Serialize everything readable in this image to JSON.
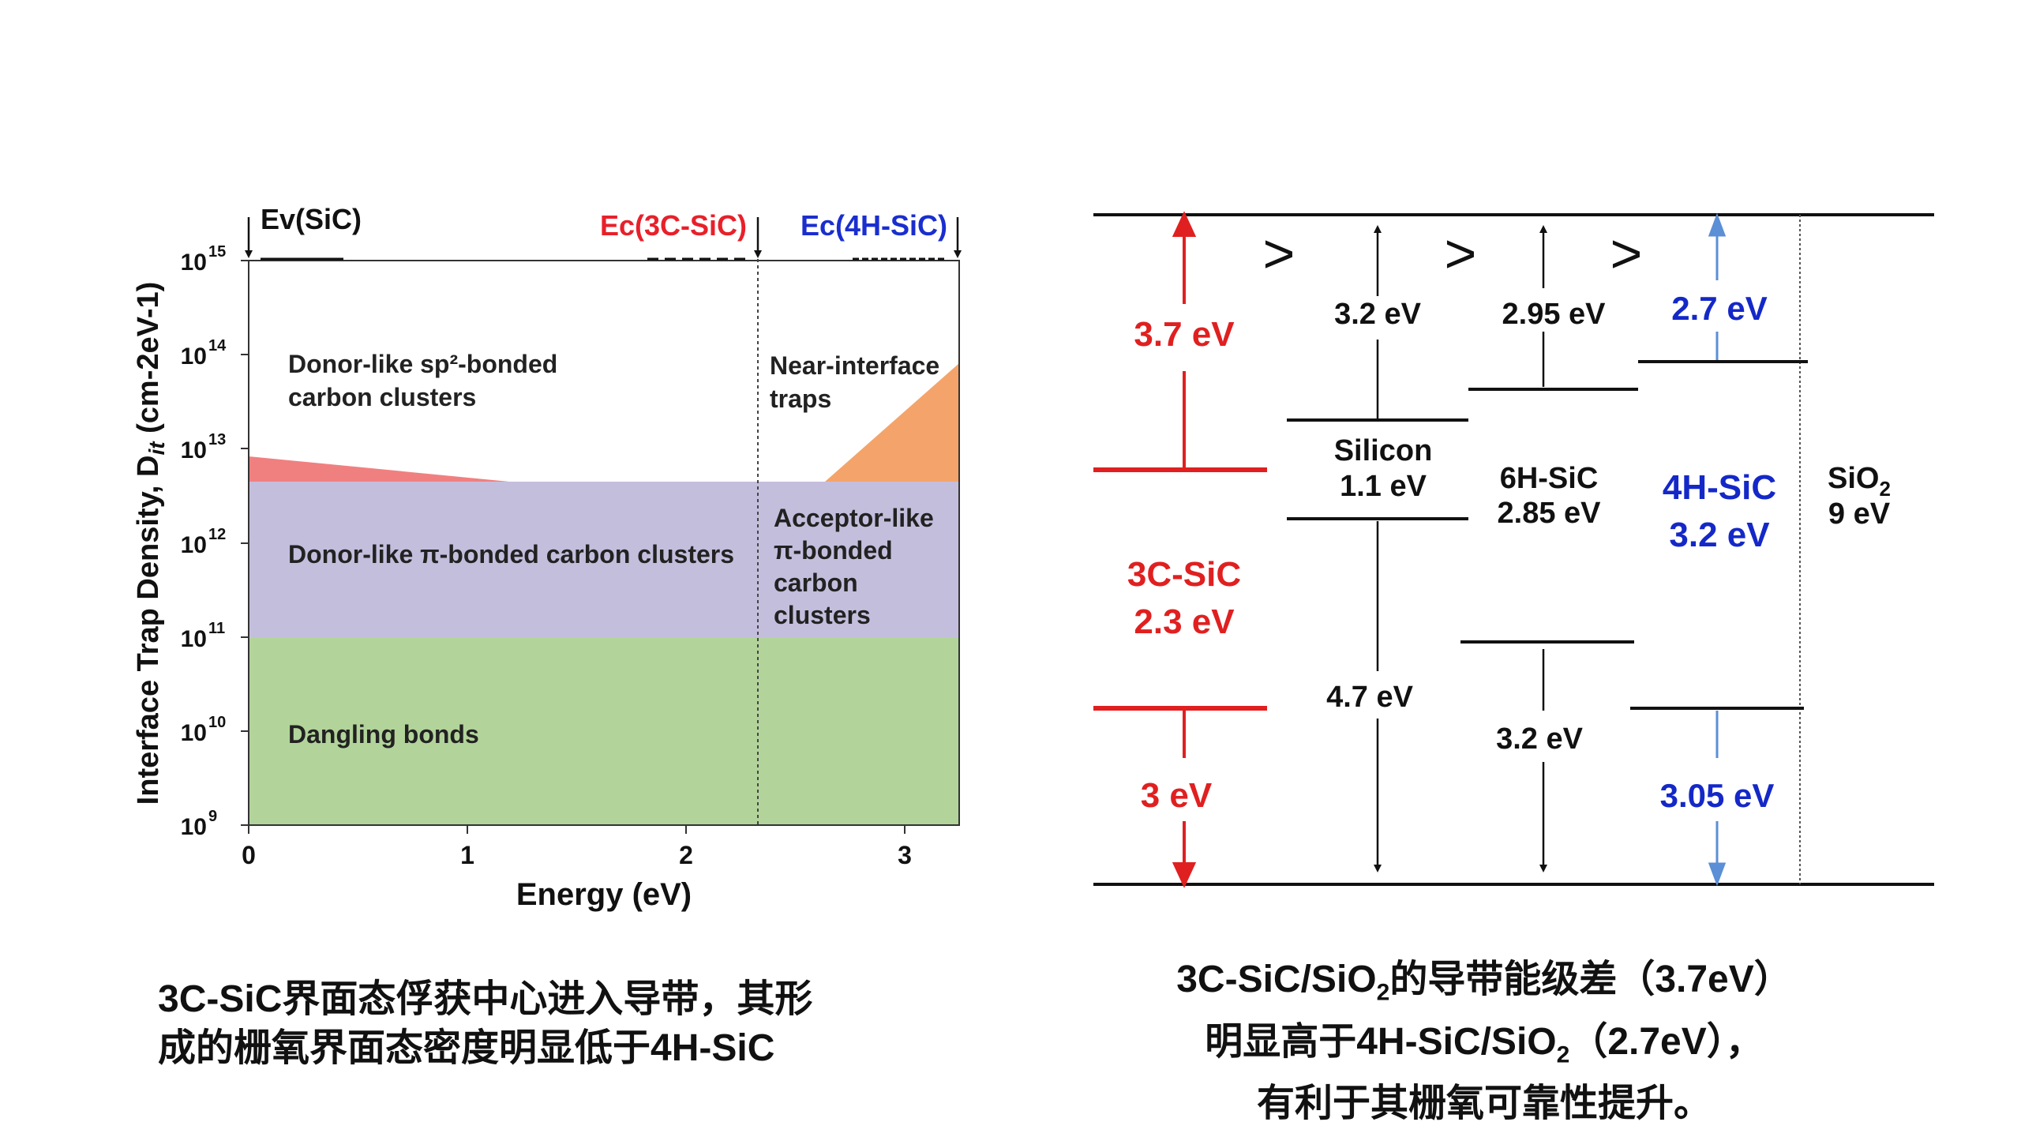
{
  "left_chart": {
    "top_labels": {
      "ev": "Ev(SiC)",
      "ec_3c": "Ec(3C-SiC)",
      "ec_4h": "Ec(4H-SiC)"
    },
    "ylabel": "Interface Trap Density, D",
    "ylabel_sub": "it",
    "ylabel_unit": "(cm-2eV-1)",
    "xlabel": "Energy (eV)",
    "y_ticks": [
      "10",
      "10",
      "10",
      "10",
      "10",
      "10",
      "10"
    ],
    "y_tick_exps": [
      "15",
      "14",
      "13",
      "12",
      "11",
      "10",
      "9"
    ],
    "x_ticks": [
      "0",
      "1",
      "2",
      "3"
    ],
    "regions": {
      "donor_sp2_line1": "Donor-like sp²-bonded",
      "donor_sp2_line2": "carbon clusters",
      "near_interface_1": "Near-interface",
      "near_interface_2": "traps",
      "donor_pi": "Donor-like π-bonded carbon clusters",
      "acceptor_1": "Acceptor-like",
      "acceptor_2": "π-bonded",
      "acceptor_3": "carbon",
      "acceptor_4": "clusters",
      "dangling": "Dangling bonds"
    },
    "colors": {
      "ev": "#111111",
      "ec_3c": "#e8202a",
      "ec_4h": "#1a2ecf",
      "sp2": "#f08080",
      "near": "#f4a46a",
      "pi": "#c4bedd",
      "dangling": "#b2d49a"
    }
  },
  "chart_data": {
    "type": "area",
    "title": "",
    "xlabel": "Energy (eV)",
    "ylabel": "Interface Trap Density, Dit (cm-2eV-1)",
    "xlim": [
      0,
      3.25
    ],
    "ylim": [
      1000000000.0,
      1000000000000000.0
    ],
    "yscale": "log",
    "series": [
      {
        "name": "Dangling bonds",
        "x": [
          0,
          3.25
        ],
        "y": [
          100000000000.0,
          100000000000.0
        ]
      },
      {
        "name": "Donor-like π-bonded carbon clusters",
        "x": [
          0,
          2.3
        ],
        "y": [
          4500000000000.0,
          4500000000000.0
        ]
      },
      {
        "name": "Acceptor-like π-bonded carbon clusters",
        "x": [
          2.3,
          3.25
        ],
        "y": [
          4500000000000.0,
          4500000000000.0
        ]
      },
      {
        "name": "Donor-like sp²-bonded carbon clusters",
        "x": [
          0,
          1.2
        ],
        "y": [
          9000000000000.0,
          4500000000000.0
        ]
      },
      {
        "name": "Near-interface traps",
        "x": [
          2.6,
          3.25
        ],
        "y": [
          4500000000000.0,
          80000000000000.0
        ]
      }
    ]
  },
  "right_diagram": {
    "offsets": {
      "gt1": ">",
      "gt2": ">",
      "gt3": ">"
    },
    "sic3c_cb_offset": "3.7 eV",
    "sic3c_vb_offset": "3 eV",
    "sic3c_name": "3C-SiC",
    "sic3c_gap": "2.3 eV",
    "si_cb_offset": "3.2 eV",
    "si_name": "Silicon",
    "si_gap": "1.1 eV",
    "si_vb_offset": "4.7 eV",
    "sic6h_cb_offset": "2.95 eV",
    "sic6h_name": "6H-SiC",
    "sic6h_gap": "2.85 eV",
    "sic6h_vb_offset": "3.2 eV",
    "sic4h_cb_offset": "2.7 eV",
    "sic4h_name": "4H-SiC",
    "sic4h_gap": "3.2 eV",
    "sic4h_vb_offset": "3.05 eV",
    "sio2_name": "SiO",
    "sio2_sub": "2",
    "sio2_gap": "9 eV",
    "colors": {
      "red": "#e02020",
      "blue": "#1428c8",
      "blue_arrow": "#5b8fd6"
    }
  },
  "captions": {
    "left_line1": "3C-SiC界面态俘获中心进入导带，其形",
    "left_line2": "成的栅氧界面态密度明显低于4H-SiC",
    "right_line1_a": "3C-SiC/SiO",
    "right_line1_sub": "2",
    "right_line1_b": "的导带能级差（3.7eV）",
    "right_line2_a": "明显高于4H-SiC/SiO",
    "right_line2_sub": "2",
    "right_line2_b": "（2.7eV），",
    "right_line3": "有利于其栅氧可靠性提升。"
  }
}
